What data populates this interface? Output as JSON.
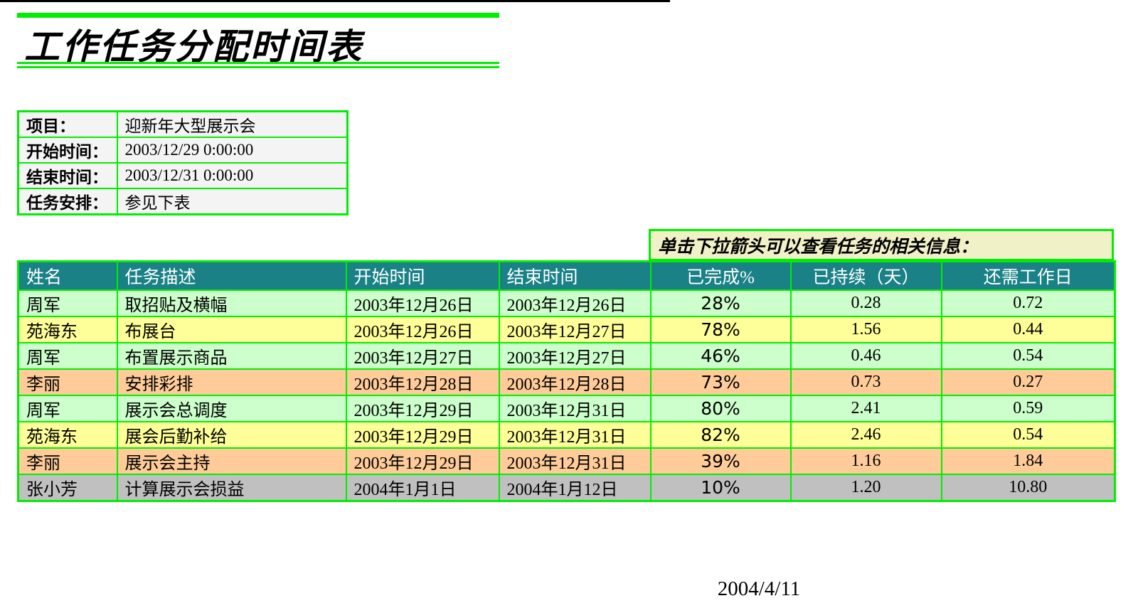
{
  "page": {
    "title": "工作任务分配时间表",
    "footer_date": "2004/4/11"
  },
  "info_table": {
    "rows": [
      {
        "label": "项目：",
        "value": "迎新年大型展示会"
      },
      {
        "label": "开始时间：",
        "value": "2003/12/29 0:00:00"
      },
      {
        "label": "结束时间：",
        "value": "2003/12/31 0:00:00"
      },
      {
        "label": "任务安排：",
        "value": "参见下表"
      }
    ]
  },
  "note": {
    "text": "单击下拉箭头可以查看任务的相关信息："
  },
  "task_table": {
    "headers": [
      "姓名",
      "任务描述",
      "开始时间",
      "结束时间",
      "已完成%",
      "已持续（天）",
      "还需工作日"
    ],
    "rows": [
      {
        "name": "周军",
        "task": "取招贴及横幅",
        "start": "2003年12月26日",
        "end": "2003年12月26日",
        "percent": "28%",
        "elapsed": "0.28",
        "remaining": "0.72",
        "bg": "#ccffcc"
      },
      {
        "name": "苑海东",
        "task": "布展台",
        "start": "2003年12月26日",
        "end": "2003年12月27日",
        "percent": "78%",
        "elapsed": "1.56",
        "remaining": "0.44",
        "bg": "#ffff99"
      },
      {
        "name": "周军",
        "task": "布置展示商品",
        "start": "2003年12月27日",
        "end": "2003年12月27日",
        "percent": "46%",
        "elapsed": "0.46",
        "remaining": "0.54",
        "bg": "#ccffcc"
      },
      {
        "name": "李丽",
        "task": "安排彩排",
        "start": "2003年12月28日",
        "end": "2003年12月28日",
        "percent": "73%",
        "elapsed": "0.73",
        "remaining": "0.27",
        "bg": "#ffcc99"
      },
      {
        "name": "周军",
        "task": "展示会总调度",
        "start": "2003年12月29日",
        "end": "2003年12月31日",
        "percent": "80%",
        "elapsed": "2.41",
        "remaining": "0.59",
        "bg": "#ccffcc"
      },
      {
        "name": "苑海东",
        "task": "展会后勤补给",
        "start": "2003年12月29日",
        "end": "2003年12月31日",
        "percent": "82%",
        "elapsed": "2.46",
        "remaining": "0.54",
        "bg": "#ffff99"
      },
      {
        "name": "李丽",
        "task": "展示会主持",
        "start": "2003年12月29日",
        "end": "2003年12月31日",
        "percent": "39%",
        "elapsed": "1.16",
        "remaining": "1.84",
        "bg": "#ffcc99"
      },
      {
        "name": "张小芳",
        "task": "计算展示会损益",
        "start": "2004年1月1日",
        "end": "2004年1月12日",
        "percent": "10%",
        "elapsed": "1.20",
        "remaining": "10.80",
        "bg": "#c0c0c0"
      }
    ]
  },
  "colors": {
    "grid_green": "#00ee00",
    "header_teal": "#1a8186",
    "note_bg": "#f1f1c8",
    "info_bg": "#f4f4f4",
    "row_light_green": "#ccffcc",
    "row_yellow": "#ffff99",
    "row_orange": "#ffcc99",
    "row_gray": "#c0c0c0"
  }
}
